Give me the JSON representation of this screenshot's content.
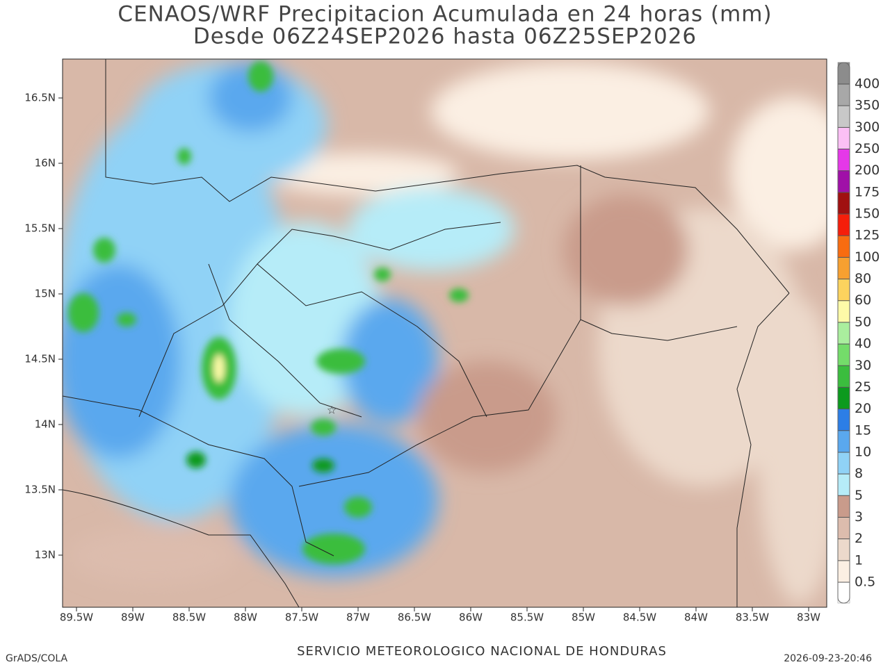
{
  "header": {
    "title": "CENAOS/WRF Precipitacion Acumulada en 24 horas (mm)",
    "subtitle": "Desde 06Z24SEP2026 hasta 06Z25SEP2026"
  },
  "map": {
    "latitude_labels": [
      "16.5N",
      "16N",
      "15.5N",
      "15N",
      "14.5N",
      "14N",
      "13.5N",
      "13N"
    ],
    "longitude_labels": [
      "89.5W",
      "89W",
      "88.5W",
      "88W",
      "87.5W",
      "87W",
      "86.5W",
      "86W",
      "85.5W",
      "85W",
      "84.5W",
      "84W",
      "83.5W",
      "83W"
    ]
  },
  "colorbar": {
    "levels": [
      "0.5",
      "1",
      "2",
      "3",
      "5",
      "8",
      "10",
      "15",
      "20",
      "25",
      "30",
      "40",
      "50",
      "60",
      "80",
      "100",
      "125",
      "150",
      "175",
      "200",
      "250",
      "300",
      "350",
      "400"
    ],
    "colors": [
      "#ffffff",
      "#fbefe3",
      "#ecd9cb",
      "#dcbcad",
      "#c99b8b",
      "#b6ecf8",
      "#90d2f6",
      "#5aa8ee",
      "#2c7ee6",
      "#0c9a1e",
      "#3bbd3e",
      "#74dc6a",
      "#aaee9e",
      "#fdfaa8",
      "#fcd35e",
      "#f7a030",
      "#f86c10",
      "#f51e0a",
      "#a01010",
      "#a010a8",
      "#e538e8",
      "#fbc0f5",
      "#c8c8c8",
      "#a8a8a8",
      "#8c8c8c",
      "#6e6e6e"
    ]
  },
  "footer": {
    "left": "GrADS/COLA",
    "center": "SERVICIO METEOROLOGICO NACIONAL DE HONDURAS",
    "right": "2026-09-23-20:46"
  }
}
